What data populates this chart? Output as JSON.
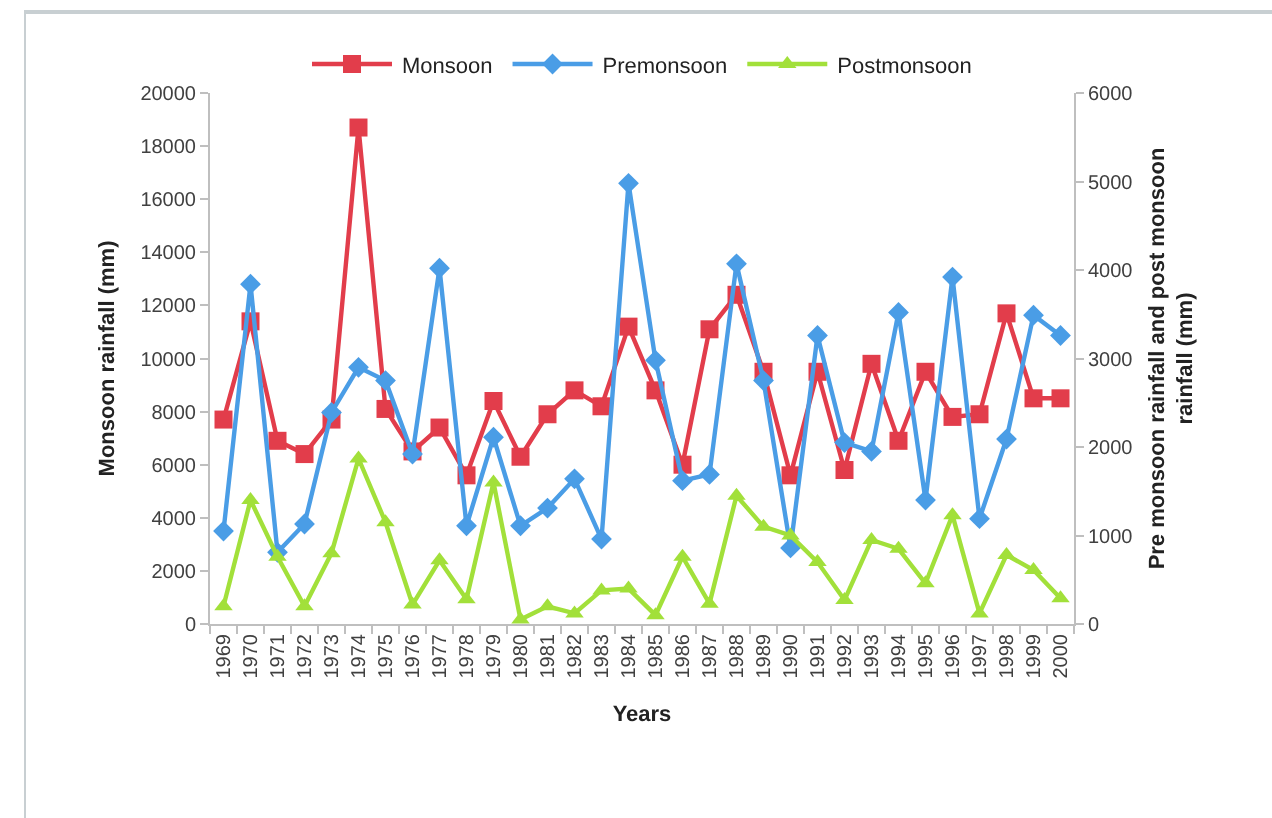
{
  "chart_data": {
    "type": "line",
    "xlabel": "Years",
    "ylabel": "Monsoon rainfall (mm)",
    "y2label": "Pre monsoon rainfall and post monsoon rainfall (mm)",
    "categories": [
      "1969",
      "1970",
      "1971",
      "1972",
      "1973",
      "1974",
      "1975",
      "1976",
      "1977",
      "1978",
      "1979",
      "1980",
      "1981",
      "1982",
      "1983",
      "1984",
      "1985",
      "1986",
      "1987",
      "1988",
      "1989",
      "1990",
      "1991",
      "1992",
      "1993",
      "1994",
      "1995",
      "1996",
      "1997",
      "1998",
      "1999",
      "2000"
    ],
    "series": [
      {
        "name": "Monsoon",
        "color": "#e23d4b",
        "marker": "square",
        "values": [
          7700,
          11400,
          6900,
          6400,
          7700,
          18700,
          8100,
          6500,
          7400,
          5600,
          8400,
          6300,
          7900,
          8800,
          8200,
          11200,
          8800,
          6000,
          11100,
          12400,
          9500,
          5600,
          9500,
          5800,
          9800,
          6900,
          9500,
          7800,
          7900,
          11700,
          8500,
          8500
        ]
      },
      {
        "name": "Premonsoon",
        "color": "#4a9de6",
        "marker": "diamond",
        "axis": "y2",
        "values": [
          1050,
          3840,
          810,
          1130,
          2390,
          2900,
          2750,
          1920,
          4020,
          1110,
          2110,
          1110,
          1310,
          1640,
          960,
          4980,
          2980,
          1620,
          1690,
          4070,
          2750,
          860,
          3260,
          2050,
          1950,
          3520,
          1400,
          3920,
          1190,
          2090,
          3490,
          3260
        ]
      },
      {
        "name": "Postmonsoon",
        "color": "#a2e03a",
        "marker": "triangle",
        "axis": "y2",
        "values": [
          200,
          1400,
          760,
          200,
          800,
          1870,
          1150,
          220,
          720,
          280,
          1600,
          50,
          200,
          120,
          380,
          400,
          100,
          760,
          230,
          1450,
          1100,
          1000,
          700,
          270,
          950,
          850,
          460,
          1230,
          120,
          780,
          610,
          290
        ]
      }
    ],
    "ylim": [
      0,
      20000
    ],
    "yticks": [
      0,
      2000,
      4000,
      6000,
      8000,
      10000,
      12000,
      14000,
      16000,
      18000,
      20000
    ],
    "y2lim": [
      0,
      6000
    ],
    "y2ticks": [
      0,
      1000,
      2000,
      3000,
      4000,
      5000,
      6000
    ],
    "grid": false,
    "legend": "top",
    "line_style": "solid"
  }
}
